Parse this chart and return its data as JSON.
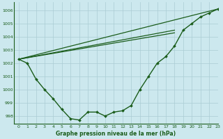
{
  "title": "Graphe pression niveau de la mer (hPa)",
  "background_color": "#cce8ee",
  "grid_color": "#aaccd4",
  "line_color": "#1a5c1a",
  "xlim": [
    -0.5,
    23
  ],
  "ylim": [
    997.4,
    1006.6
  ],
  "yticks": [
    998,
    999,
    1000,
    1001,
    1002,
    1003,
    1004,
    1005,
    1006
  ],
  "xticks": [
    0,
    1,
    2,
    3,
    4,
    5,
    6,
    7,
    8,
    9,
    10,
    11,
    12,
    13,
    14,
    15,
    16,
    17,
    18,
    19,
    20,
    21,
    22,
    23
  ],
  "series": [
    {
      "x": [
        0,
        1,
        2,
        3,
        4,
        5,
        6,
        7,
        8,
        9,
        10,
        11,
        12,
        13,
        14,
        15,
        16,
        17,
        18,
        19,
        20,
        21,
        22,
        23
      ],
      "y": [
        1002.3,
        1002.0,
        1000.8,
        1000.0,
        999.3,
        998.5,
        997.8,
        997.7,
        998.3,
        998.3,
        998.0,
        998.3,
        998.4,
        998.8,
        1000.0,
        1001.0,
        1002.0,
        1002.5,
        1003.3,
        1004.5,
        1005.0,
        1005.5,
        1005.8,
        1006.1
      ],
      "marker": "D",
      "markersize": 2.0,
      "linewidth": 1.0,
      "has_marker": true
    },
    {
      "x": [
        0,
        23
      ],
      "y": [
        1002.3,
        1006.1
      ],
      "has_marker": false,
      "linewidth": 0.9
    },
    {
      "x": [
        0,
        18
      ],
      "y": [
        1002.3,
        1004.5
      ],
      "has_marker": false,
      "linewidth": 0.9
    },
    {
      "x": [
        0,
        18
      ],
      "y": [
        1002.3,
        1004.3
      ],
      "has_marker": false,
      "linewidth": 0.9
    }
  ],
  "ylabel_fontsize": 4.5,
  "xlabel_fontsize": 4.5,
  "title_fontsize": 5.5
}
